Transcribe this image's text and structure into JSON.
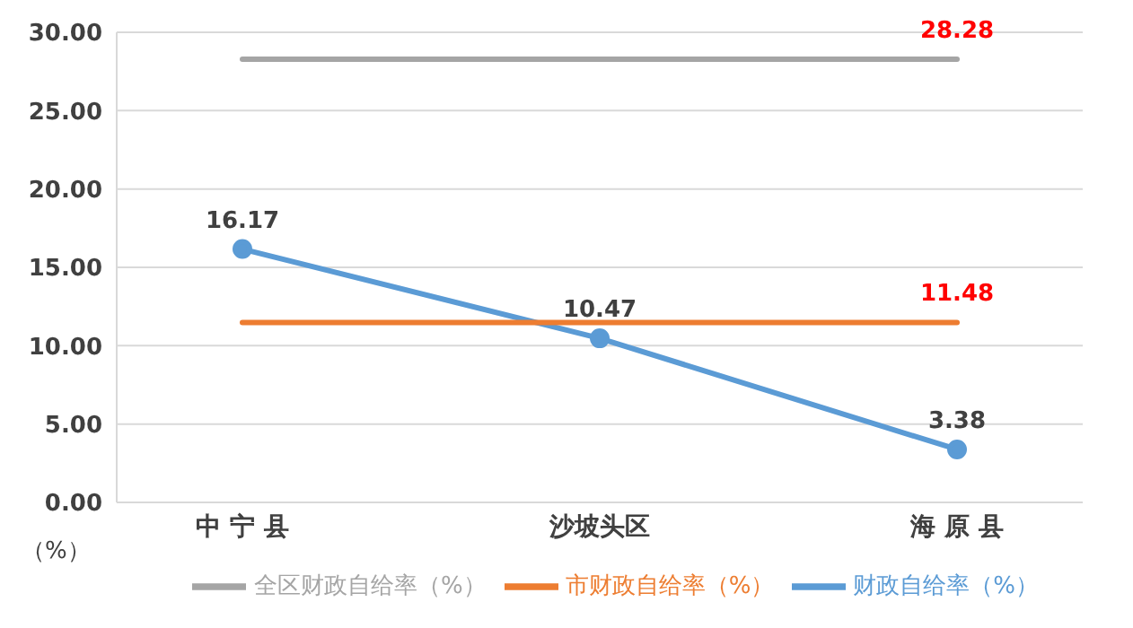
{
  "chart_data": {
    "type": "line",
    "ylabel": "（%）",
    "categories": [
      "中 宁 县",
      "沙坡头区",
      "海 原 县"
    ],
    "series": [
      {
        "name": "财政自给率（%）",
        "color": "#5b9bd5",
        "values": [
          16.17,
          10.47,
          3.38
        ],
        "marker": "circle",
        "data_labels": true
      },
      {
        "name": "市财政自给率（%）",
        "color": "#ed7d31",
        "values": [
          11.48,
          11.48,
          11.48
        ],
        "marker": "none",
        "value_labels": [
          null,
          null,
          "11.48"
        ]
      },
      {
        "name": "全区财政自给率（%）",
        "color": "#a5a5a5",
        "values": [
          28.28,
          28.28,
          28.28
        ],
        "marker": "none",
        "value_labels": [
          null,
          null,
          "28.28"
        ]
      }
    ],
    "ylim": [
      0,
      30
    ],
    "yticks": [
      {
        "value": 0,
        "label": "0.00"
      },
      {
        "value": 5,
        "label": "5.00"
      },
      {
        "value": 10,
        "label": "10.00"
      },
      {
        "value": 15,
        "label": "15.00"
      },
      {
        "value": 20,
        "label": "20.00"
      },
      {
        "value": 25,
        "label": "25.00"
      },
      {
        "value": 30,
        "label": "30.00"
      }
    ],
    "grid": "y",
    "legend": "bottom"
  }
}
